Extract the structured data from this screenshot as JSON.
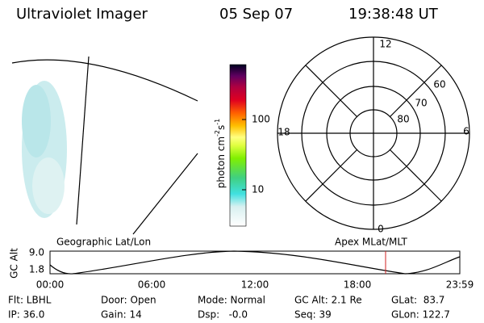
{
  "header": {
    "title": "Ultraviolet Imager",
    "date": "05 Sep 07",
    "time": "19:38:48 UT"
  },
  "colorbar": {
    "label": [
      "photon cm",
      "-2",
      "s",
      "-1"
    ],
    "ticks": [
      "100",
      "10"
    ]
  },
  "polar": {
    "mlt": [
      "12",
      "18",
      "6",
      "0"
    ],
    "mlat": [
      "60",
      "70",
      "80"
    ]
  },
  "orbit": {
    "left_title": "Geographic Lat/Lon",
    "right_title": "Apex MLat/MLT",
    "ylabel": "GC Alt",
    "yticks": [
      "9.0",
      "1.8"
    ],
    "xticks": [
      "00:00",
      "06:00",
      "12:00",
      "18:00",
      "23:59"
    ]
  },
  "status": [
    [
      "Flt: LBHL",
      "Door: Open",
      "Mode: Normal",
      "GC Alt: 2.1 Re",
      "GLat:  83.7"
    ],
    [
      "IP: 36.0",
      "Gain: 14",
      "Dsp:   -0.0",
      "Seq: 39",
      "GLon: 122.7"
    ]
  ]
}
